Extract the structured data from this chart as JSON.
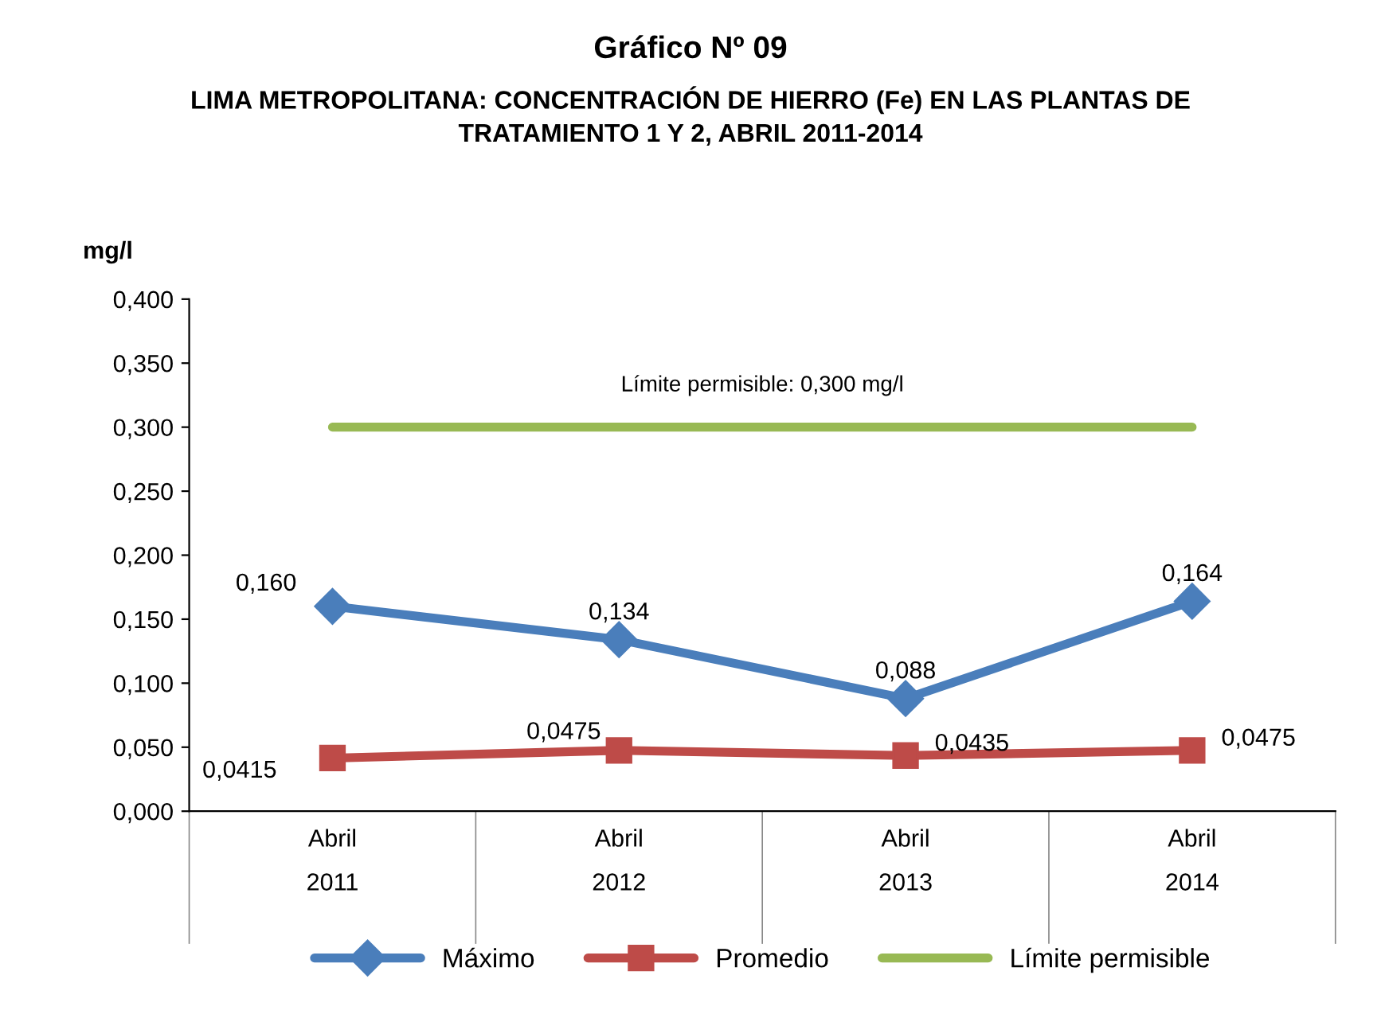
{
  "chart_data": {
    "type": "line",
    "title": "Gráfico Nº 09",
    "subtitle": "LIMA METROPOLITANA: CONCENTRACIÓN DE HIERRO (Fe) EN LAS PLANTAS DE\nTRATAMIENTO 1 Y 2, ABRIL 2011-2014",
    "ylabel": "mg/l",
    "categories": [
      "Abril\n2011",
      "Abril\n2012",
      "Abril\n2013",
      "Abril\n2014"
    ],
    "series": [
      {
        "name": "Máximo",
        "color": "#4a7ebb",
        "marker": "diamond",
        "values": [
          0.16,
          0.134,
          0.088,
          0.164
        ],
        "value_labels": [
          "0,160",
          "0,134",
          "0,088",
          "0,164"
        ]
      },
      {
        "name": "Promedio",
        "color": "#be4b48",
        "marker": "square",
        "values": [
          0.0415,
          0.0475,
          0.0435,
          0.0475
        ],
        "value_labels": [
          "0,0415",
          "0,0475",
          "0,0435",
          "0,0475"
        ]
      },
      {
        "name": "Límite permisible",
        "color": "#98b954",
        "marker": "none",
        "values": [
          0.3,
          0.3,
          0.3,
          0.3
        ]
      }
    ],
    "annotations": [
      "Límite permisible: 0,300 mg/l"
    ],
    "ylim": [
      0,
      0.4
    ],
    "yticks": [
      {
        "value": 0,
        "label": "0,000"
      },
      {
        "value": 0.05,
        "label": "0,050"
      },
      {
        "value": 0.1,
        "label": "0,100"
      },
      {
        "value": 0.15,
        "label": "0,150"
      },
      {
        "value": 0.2,
        "label": "0,200"
      },
      {
        "value": 0.25,
        "label": "0,250"
      },
      {
        "value": 0.3,
        "label": "0,300"
      },
      {
        "value": 0.35,
        "label": "0,350"
      },
      {
        "value": 0.4,
        "label": "0,400"
      }
    ],
    "grid": false,
    "legend": "bottom",
    "line_style": "solid"
  }
}
